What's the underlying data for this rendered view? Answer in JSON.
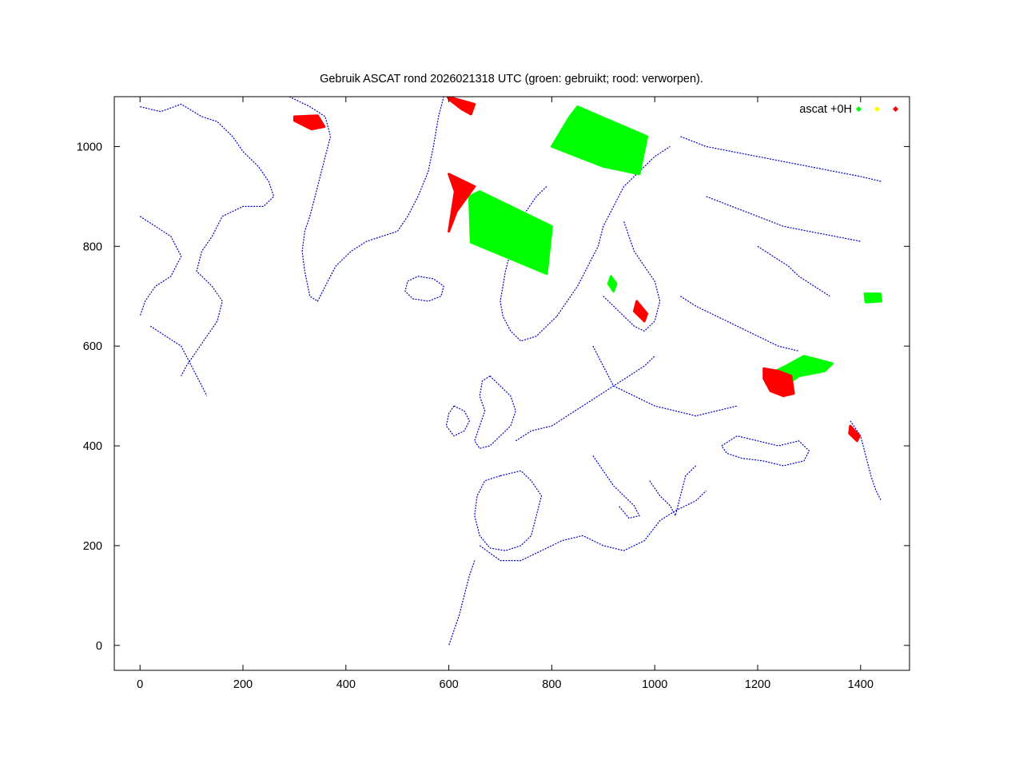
{
  "chart_data": {
    "type": "scatter",
    "title": "Gebruik ASCAT rond 2026021318 UTC (groen: gebruikt; rood: verworpen).",
    "xlabel": "",
    "ylabel": "",
    "xlim": [
      -50,
      1495
    ],
    "ylim": [
      -50,
      1100
    ],
    "xticks": [
      0,
      200,
      400,
      600,
      800,
      1000,
      1200,
      1400
    ],
    "yticks": [
      0,
      200,
      400,
      600,
      800,
      1000
    ],
    "grid": false,
    "legend_position": "top-right",
    "legend": {
      "label": "ascat +0H",
      "marker_colors": [
        "#00ff00",
        "#ffff00",
        "#ff0000"
      ]
    },
    "coastline_color": "#0000c0",
    "series": [
      {
        "name": "groen: gebruikt",
        "color": "#00ff00",
        "regions": [
          {
            "polygon": [
              [
                660,
                910
              ],
              [
                800,
                840
              ],
              [
                790,
                745
              ],
              [
                643,
                808
              ],
              [
                640,
                900
              ]
            ]
          },
          {
            "polygon": [
              [
                850,
                1080
              ],
              [
                985,
                1020
              ],
              [
                970,
                945
              ],
              [
                900,
                960
              ],
              [
                800,
                1000
              ],
              [
                835,
                1060
              ]
            ]
          },
          {
            "polygon": [
              [
                915,
                740
              ],
              [
                925,
                725
              ],
              [
                920,
                710
              ],
              [
                910,
                725
              ]
            ]
          },
          {
            "polygon": [
              [
                1215,
                540
              ],
              [
                1255,
                560
              ],
              [
                1290,
                580
              ],
              [
                1345,
                565
              ],
              [
                1330,
                550
              ],
              [
                1280,
                540
              ],
              [
                1260,
                525
              ],
              [
                1225,
                520
              ]
            ]
          },
          {
            "polygon": [
              [
                1408,
                705
              ],
              [
                1438,
                705
              ],
              [
                1440,
                690
              ],
              [
                1410,
                688
              ]
            ]
          }
        ]
      },
      {
        "name": "rood: verworpen",
        "color": "#ff0000",
        "regions": [
          {
            "polygon": [
              [
                598,
                1100
              ],
              [
                650,
                1085
              ],
              [
                643,
                1065
              ],
              [
                625,
                1075
              ],
              [
                600,
                1095
              ]
            ]
          },
          {
            "polygon": [
              [
                300,
                1060
              ],
              [
                345,
                1062
              ],
              [
                358,
                1040
              ],
              [
                333,
                1035
              ],
              [
                300,
                1052
              ]
            ]
          },
          {
            "polygon": [
              [
                600,
                945
              ],
              [
                650,
                920
              ],
              [
                615,
                870
              ],
              [
                600,
                830
              ],
              [
                612,
                910
              ]
            ]
          },
          {
            "polygon": [
              [
                1212,
                555
              ],
              [
                1240,
                550
              ],
              [
                1265,
                540
              ],
              [
                1270,
                505
              ],
              [
                1250,
                500
              ],
              [
                1225,
                510
              ],
              [
                1212,
                535
              ]
            ]
          },
          {
            "polygon": [
              [
                1380,
                440
              ],
              [
                1398,
                420
              ],
              [
                1393,
                410
              ],
              [
                1378,
                425
              ]
            ]
          },
          {
            "polygon": [
              [
                965,
                690
              ],
              [
                985,
                665
              ],
              [
                980,
                650
              ],
              [
                960,
                670
              ]
            ]
          }
        ]
      }
    ]
  }
}
